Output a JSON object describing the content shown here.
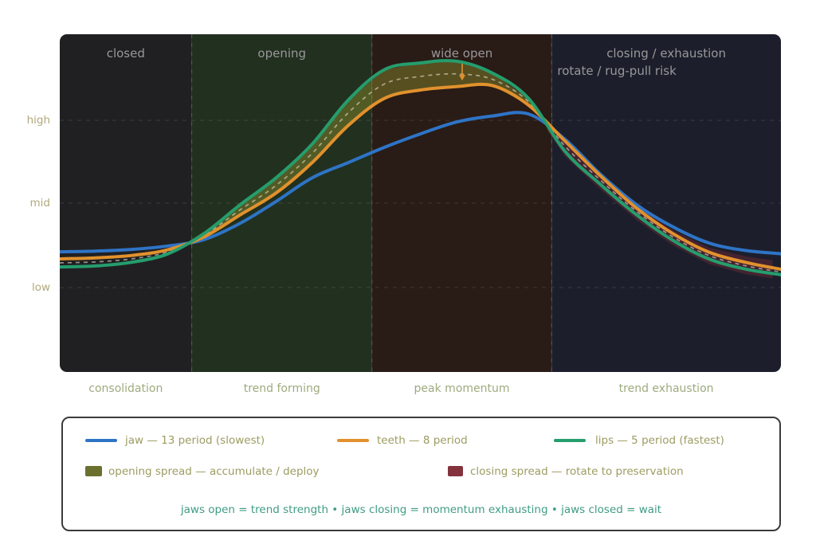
{
  "figure": {
    "background": "#ffffff"
  },
  "axis": {
    "yticks": [
      {
        "label": "high",
        "value": 7.45
      },
      {
        "label": "mid",
        "value": 5.0
      },
      {
        "label": "low",
        "value": 2.5
      }
    ],
    "grid_color": "rgba(255,255,255,0.10)",
    "separator_color": "rgba(255,255,255,0.15)"
  },
  "chart_data": {
    "type": "line",
    "title": "",
    "xlabel": "",
    "ylabel": "",
    "ylim": [
      0,
      10
    ],
    "x": [
      0,
      5,
      10,
      15,
      20,
      25,
      30,
      35,
      40,
      45,
      50,
      55,
      60,
      65,
      70,
      75,
      80,
      85,
      90,
      95,
      100
    ],
    "series": [
      {
        "name": "jaw",
        "label": "jaw — 13 period (slowest)",
        "color": "#2e74c6",
        "values": [
          3.56,
          3.58,
          3.63,
          3.73,
          3.92,
          4.4,
          5.05,
          5.75,
          6.2,
          6.65,
          7.05,
          7.4,
          7.58,
          7.64,
          6.9,
          5.85,
          4.95,
          4.3,
          3.82,
          3.6,
          3.5
        ]
      },
      {
        "name": "teeth",
        "label": "teeth — 8 period",
        "color": "#e1912d",
        "values": [
          3.35,
          3.38,
          3.45,
          3.62,
          4.0,
          4.65,
          5.3,
          6.2,
          7.3,
          8.1,
          8.35,
          8.45,
          8.48,
          7.9,
          6.85,
          5.8,
          4.85,
          4.1,
          3.55,
          3.25,
          3.04
        ]
      },
      {
        "name": "lips",
        "label": "lips — 5 period (fastest)",
        "color": "#259d6d",
        "values": [
          3.11,
          3.14,
          3.25,
          3.5,
          4.1,
          4.95,
          5.75,
          6.75,
          8.05,
          8.95,
          9.15,
          9.2,
          8.85,
          8.1,
          6.55,
          5.55,
          4.65,
          3.9,
          3.35,
          3.05,
          2.88
        ]
      }
    ],
    "midline": {
      "between": [
        "lips",
        "teeth"
      ],
      "style": "dashed",
      "color": "rgba(228,223,205,0.6)"
    },
    "spreads": [
      {
        "name": "opening spread",
        "upper": [
          "lips"
        ],
        "lower": [
          "teeth"
        ],
        "lower_offset": 0,
        "x_start": 18.6,
        "x_end": 67.2,
        "color": "rgba(158,158,48,0.40)"
      },
      {
        "name": "closing spread",
        "upper": [
          "jaw",
          "teeth"
        ],
        "lower": [
          "lips"
        ],
        "lower_offset": -0.15,
        "x_start": 67.6,
        "x_end": 100,
        "color": "rgba(152,46,60,0.33)"
      }
    ],
    "annotation_arrow": {
      "x": 55.8,
      "v_from": 9.13,
      "v_to": 8.63,
      "color": "#e1912d"
    },
    "phases": [
      {
        "label": "closed",
        "sublabel": "",
        "bottom_label": "consolidation",
        "x_start": 0,
        "x_end": 18.3,
        "color": "#202022"
      },
      {
        "label": "opening",
        "sublabel": "",
        "bottom_label": "trend forming",
        "x_start": 18.3,
        "x_end": 43.3,
        "color": "#22301f"
      },
      {
        "label": "wide open",
        "sublabel": "",
        "bottom_label": "peak momentum",
        "x_start": 43.3,
        "x_end": 68.2,
        "color": "#291b16"
      },
      {
        "label": "closing / exhaustion",
        "sublabel": "rotate / rug-pull risk",
        "bottom_label": "trend exhaustion",
        "x_start": 68.2,
        "x_end": 100,
        "color": "#1c1f2b"
      }
    ]
  },
  "legend": {
    "spread_items": [
      {
        "label": "opening spread — accumulate / deploy",
        "swatch_color": "#6b7030"
      },
      {
        "label": "closing spread — rotate to preservation",
        "swatch_color": "#84333c"
      }
    ],
    "caption": "jaws open = trend strength • jaws closing = momentum exhausting • jaws closed = wait"
  }
}
